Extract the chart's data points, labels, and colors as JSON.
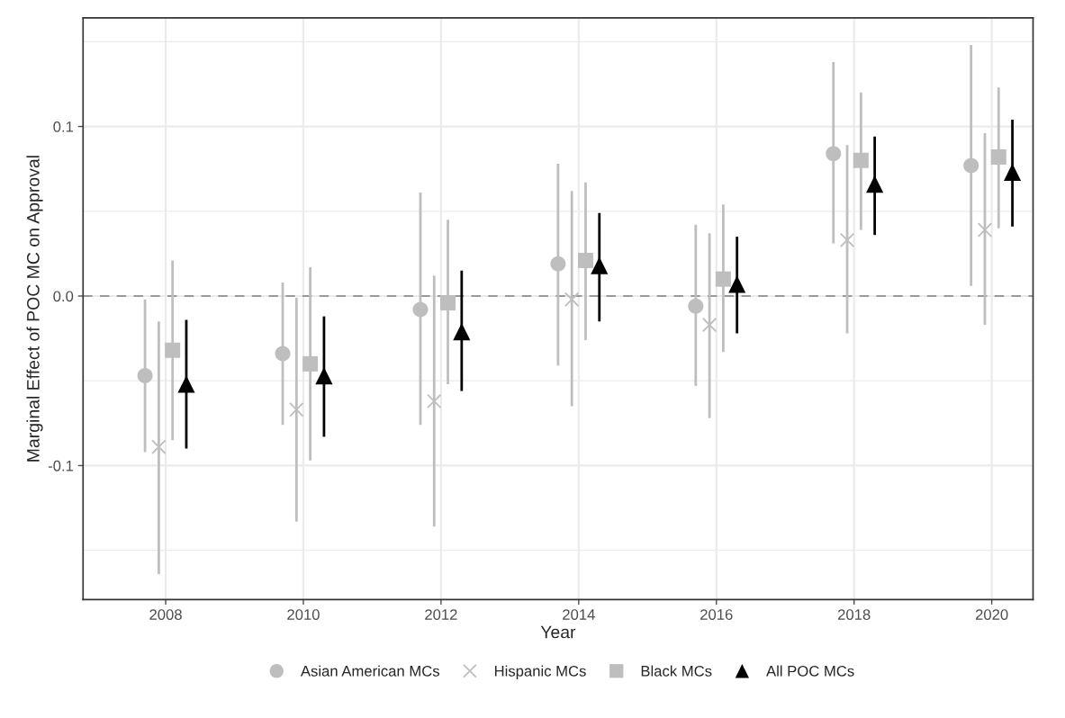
{
  "chart_data": {
    "type": "scatter",
    "xlabel": "Year",
    "ylabel": "Marginal Effect of POC MC on Approval",
    "xlim": [
      2006.8,
      2020.6
    ],
    "ylim": [
      -0.179,
      0.164
    ],
    "xticks": [
      2008,
      2010,
      2012,
      2014,
      2016,
      2018,
      2020
    ],
    "yticks": [
      {
        "value": -0.1,
        "label": "-0.1"
      },
      {
        "value": 0,
        "label": "0.0"
      },
      0.1
    ],
    "grid": true,
    "legend": "bottom",
    "ref_lines": [
      {
        "axis": "y",
        "value": 0,
        "color": "#999999",
        "line_style": "dashed"
      }
    ],
    "series": [
      {
        "name": "Asian American MCs",
        "color": "#bebebe",
        "marker": "circle",
        "x": [
          2007.7,
          2009.7,
          2011.7,
          2013.7,
          2015.7,
          2017.7,
          2019.7
        ],
        "values": [
          -0.047,
          -0.034,
          -0.008,
          0.019,
          -0.006,
          0.084,
          0.077
        ],
        "errors": [
          [
            -0.092,
            -0.002
          ],
          [
            -0.076,
            0.008
          ],
          [
            -0.076,
            0.061
          ],
          [
            -0.041,
            0.078
          ],
          [
            -0.053,
            0.042
          ],
          [
            0.031,
            0.138
          ],
          [
            0.006,
            0.148
          ]
        ]
      },
      {
        "name": "Hispanic MCs",
        "color": "#bebebe",
        "marker": "cross",
        "x": [
          2007.9,
          2009.9,
          2011.9,
          2013.9,
          2015.9,
          2017.9,
          2019.9
        ],
        "values": [
          -0.089,
          -0.067,
          -0.062,
          -0.002,
          -0.017,
          0.033,
          0.039
        ],
        "errors": [
          [
            -0.164,
            -0.015
          ],
          [
            -0.133,
            -0.001
          ],
          [
            -0.136,
            0.012
          ],
          [
            -0.065,
            0.062
          ],
          [
            -0.072,
            0.037
          ],
          [
            -0.022,
            0.089
          ],
          [
            -0.017,
            0.096
          ]
        ]
      },
      {
        "name": "Black MCs",
        "color": "#bebebe",
        "marker": "square",
        "x": [
          2008.1,
          2010.1,
          2012.1,
          2014.1,
          2016.1,
          2018.1,
          2020.1
        ],
        "values": [
          -0.032,
          -0.04,
          -0.004,
          0.021,
          0.01,
          0.08,
          0.082
        ],
        "errors": [
          [
            -0.085,
            0.021
          ],
          [
            -0.097,
            0.017
          ],
          [
            -0.052,
            0.045
          ],
          [
            -0.026,
            0.067
          ],
          [
            -0.033,
            0.054
          ],
          [
            0.039,
            0.12
          ],
          [
            0.04,
            0.123
          ]
        ]
      },
      {
        "name": "All POC MCs",
        "color": "#000000",
        "marker": "triangle",
        "x": [
          2008.3,
          2010.3,
          2012.3,
          2014.3,
          2016.3,
          2018.3,
          2020.3
        ],
        "values": [
          -0.052,
          -0.047,
          -0.021,
          0.018,
          0.007,
          0.066,
          0.073
        ],
        "errors": [
          [
            -0.09,
            -0.014
          ],
          [
            -0.083,
            -0.012
          ],
          [
            -0.056,
            0.015
          ],
          [
            -0.015,
            0.049
          ],
          [
            -0.022,
            0.035
          ],
          [
            0.036,
            0.094
          ],
          [
            0.041,
            0.104
          ]
        ]
      }
    ]
  }
}
